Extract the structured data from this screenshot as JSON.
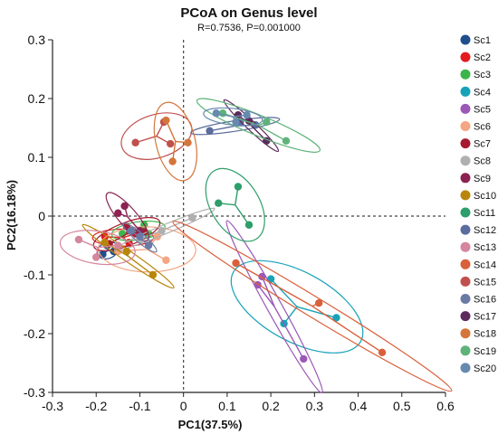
{
  "chart_data": {
    "type": "scatter",
    "title": "PCoA on Genus level",
    "subtitle": "R=0.7536, P=0.001000",
    "xlabel": "PC1(37.5%)",
    "ylabel": "PC2(16.18%)",
    "xlim": [
      -0.3,
      0.6
    ],
    "ylim": [
      -0.3,
      0.3
    ],
    "xticks": [
      "-0.3",
      "-0.2",
      "-0.1",
      "0",
      "0.1",
      "0.2",
      "0.3",
      "0.4",
      "0.5",
      "0.6"
    ],
    "yticks": [
      "0.3",
      "0.2",
      "0.1",
      "0",
      "-0.1",
      "-0.2",
      "-0.3"
    ],
    "reference_lines": {
      "x": 0,
      "y": 0,
      "style": "dotted"
    },
    "legend_position": "right",
    "series": [
      {
        "name": "Sc1",
        "color": "#1f4e8c",
        "points": [
          [
            -0.185,
            -0.065
          ],
          [
            -0.175,
            -0.05
          ],
          [
            -0.16,
            -0.06
          ]
        ]
      },
      {
        "name": "Sc2",
        "color": "#e41a1c",
        "points": [
          [
            -0.18,
            -0.035
          ],
          [
            -0.125,
            -0.045
          ],
          [
            -0.11,
            -0.03
          ]
        ]
      },
      {
        "name": "Sc3",
        "color": "#3cb44b",
        "points": [
          [
            -0.14,
            -0.03
          ],
          [
            -0.09,
            -0.015
          ],
          [
            -0.08,
            -0.03
          ]
        ]
      },
      {
        "name": "Sc4",
        "color": "#17a2b8",
        "points": [
          [
            0.2,
            -0.107
          ],
          [
            0.23,
            -0.183
          ],
          [
            0.35,
            -0.173
          ]
        ]
      },
      {
        "name": "Sc5",
        "color": "#9b59b6",
        "points": [
          [
            0.17,
            -0.117
          ],
          [
            0.18,
            -0.103
          ],
          [
            0.275,
            -0.243
          ]
        ]
      },
      {
        "name": "Sc6",
        "color": "#f4a582",
        "points": [
          [
            -0.15,
            -0.06
          ],
          [
            -0.06,
            -0.035
          ],
          [
            -0.04,
            -0.075
          ]
        ]
      },
      {
        "name": "Sc7",
        "color": "#a6192e",
        "points": [
          [
            -0.17,
            -0.047
          ],
          [
            -0.13,
            -0.018
          ],
          [
            -0.09,
            -0.027
          ]
        ]
      },
      {
        "name": "Sc8",
        "color": "#b0b0b0",
        "points": [
          [
            -0.1,
            -0.04
          ],
          [
            -0.05,
            -0.025
          ],
          [
            0.02,
            -0.003
          ]
        ]
      },
      {
        "name": "Sc9",
        "color": "#8b2252",
        "points": [
          [
            -0.15,
            0.005
          ],
          [
            -0.135,
            0.017
          ],
          [
            -0.1,
            -0.025
          ]
        ]
      },
      {
        "name": "Sc10",
        "color": "#b8860b",
        "points": [
          [
            -0.18,
            -0.045
          ],
          [
            -0.13,
            -0.06
          ],
          [
            -0.07,
            -0.1
          ]
        ]
      },
      {
        "name": "Sc11",
        "color": "#2e9e6b",
        "points": [
          [
            0.08,
            0.022
          ],
          [
            0.125,
            0.05
          ],
          [
            0.15,
            -0.015
          ]
        ]
      },
      {
        "name": "Sc12",
        "color": "#5b6c9e",
        "points": [
          [
            0.06,
            0.145
          ],
          [
            0.13,
            0.16
          ],
          [
            0.165,
            0.155
          ]
        ]
      },
      {
        "name": "Sc13",
        "color": "#d4869c",
        "points": [
          [
            -0.24,
            -0.04
          ],
          [
            -0.2,
            -0.07
          ],
          [
            -0.15,
            -0.05
          ]
        ]
      },
      {
        "name": "Sc14",
        "color": "#d9603b",
        "points": [
          [
            0.12,
            -0.08
          ],
          [
            0.31,
            -0.148
          ],
          [
            0.455,
            -0.232
          ]
        ]
      },
      {
        "name": "Sc15",
        "color": "#c0504d",
        "points": [
          [
            -0.11,
            0.125
          ],
          [
            -0.03,
            0.123
          ],
          [
            -0.045,
            0.16
          ]
        ]
      },
      {
        "name": "Sc16",
        "color": "#6a7aa6",
        "points": [
          [
            -0.12,
            -0.025
          ],
          [
            -0.1,
            -0.035
          ],
          [
            -0.08,
            -0.05
          ]
        ]
      },
      {
        "name": "Sc17",
        "color": "#5c2a5c",
        "points": [
          [
            0.125,
            0.172
          ],
          [
            0.15,
            0.162
          ],
          [
            0.19,
            0.128
          ]
        ]
      },
      {
        "name": "Sc18",
        "color": "#d4763b",
        "points": [
          [
            -0.04,
            0.163
          ],
          [
            -0.025,
            0.093
          ],
          [
            0.01,
            0.125
          ]
        ]
      },
      {
        "name": "Sc19",
        "color": "#5fb37a",
        "points": [
          [
            0.09,
            0.175
          ],
          [
            0.19,
            0.16
          ],
          [
            0.235,
            0.128
          ]
        ]
      },
      {
        "name": "Sc20",
        "color": "#6689b0",
        "points": [
          [
            0.075,
            0.175
          ],
          [
            0.145,
            0.172
          ],
          [
            0.12,
            0.16
          ]
        ]
      }
    ]
  }
}
